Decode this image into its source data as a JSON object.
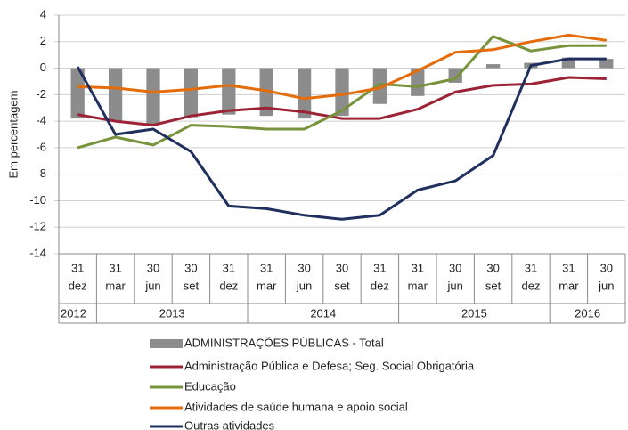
{
  "chart_data": {
    "type": "bar_line",
    "y_label": "Em percentagem",
    "groups": [
      {
        "label": "2012",
        "categories": [
          [
            "31",
            "dez"
          ]
        ]
      },
      {
        "label": "2013",
        "categories": [
          [
            "31",
            "mar"
          ],
          [
            "30",
            "jun"
          ],
          [
            "30",
            "set"
          ],
          [
            "31",
            "dez"
          ]
        ]
      },
      {
        "label": "2014",
        "categories": [
          [
            "31",
            "mar"
          ],
          [
            "30",
            "jun"
          ],
          [
            "30",
            "set"
          ],
          [
            "31",
            "dez"
          ]
        ]
      },
      {
        "label": "2015",
        "categories": [
          [
            "31",
            "mar"
          ],
          [
            "30",
            "jun"
          ],
          [
            "30",
            "set"
          ],
          [
            "31",
            "dez"
          ]
        ]
      },
      {
        "label": "2016",
        "categories": [
          [
            "31",
            "mar"
          ],
          [
            "30",
            "jun"
          ]
        ]
      }
    ],
    "series": [
      {
        "name": "ADMINISTRAÇÕES PÚBLICAS - Total",
        "kind": "bar",
        "color": "#8c8c8c",
        "values": [
          -3.8,
          -4.0,
          -4.2,
          -3.7,
          -3.5,
          -3.6,
          -3.8,
          -3.6,
          -2.7,
          -2.1,
          -1.1,
          0.3,
          0.4,
          0.8,
          0.7
        ]
      },
      {
        "name": "Administração Pública e Defesa; Seg. Social Obrigatória",
        "kind": "line",
        "color": "#9b2335",
        "values": [
          -3.5,
          -4.0,
          -4.3,
          -3.6,
          -3.2,
          -3.0,
          -3.3,
          -3.8,
          -3.8,
          -3.1,
          -1.8,
          -1.3,
          -1.2,
          -0.7,
          -0.8
        ]
      },
      {
        "name": "Educação",
        "kind": "line",
        "color": "#77933c",
        "values": [
          -6.0,
          -5.2,
          -5.8,
          -4.3,
          -4.4,
          -4.6,
          -4.6,
          -3.2,
          -1.2,
          -1.4,
          -0.8,
          2.4,
          1.3,
          1.7,
          1.7
        ]
      },
      {
        "name": "Atividades de saúde humana e apoio social",
        "kind": "line",
        "color": "#e46c0a",
        "values": [
          -1.4,
          -1.5,
          -1.8,
          -1.6,
          -1.3,
          -1.7,
          -2.3,
          -2.0,
          -1.5,
          -0.2,
          1.2,
          1.4,
          2.0,
          2.5,
          2.1
        ]
      },
      {
        "name": "Outras atividades",
        "kind": "line",
        "color": "#1f2f5e",
        "values": [
          0.1,
          -5.0,
          -4.6,
          -6.3,
          -10.4,
          -10.6,
          -11.1,
          -11.4,
          -11.1,
          -9.2,
          -8.5,
          -6.6,
          0.2,
          0.7,
          0.7
        ]
      }
    ],
    "ylim": [
      -14,
      4
    ],
    "yticks": [
      -14,
      -12,
      -10,
      -8,
      -6,
      -4,
      -2,
      0,
      2,
      4
    ],
    "grid": true,
    "legend": "bottom"
  }
}
